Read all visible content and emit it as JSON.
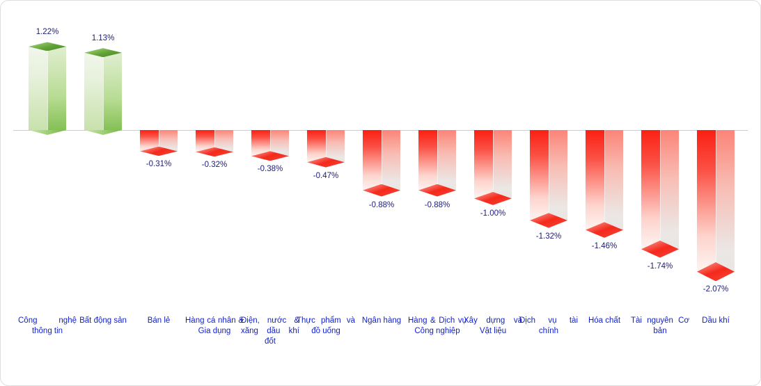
{
  "chart_data": {
    "type": "bar",
    "style": "3d-prism-vertical",
    "title": "",
    "xlabel": "",
    "ylabel": "",
    "unit": "%",
    "categories": [
      "Công nghệ thông tin",
      "Bất động sản",
      "Bán lẻ",
      "Hàng cá nhân & Gia dụng",
      "Điện, nước & xăng dầu khí đốt",
      "Thực phẩm và đồ uống",
      "Ngân hàng",
      "Hàng & Dịch vụ Công nghiệp",
      "Xây dựng và Vật liệu",
      "Dịch vụ tài chính",
      "Hóa chất",
      "Tài nguyên Cơ bản",
      "Dầu khí"
    ],
    "values": [
      1.22,
      1.13,
      -0.31,
      -0.32,
      -0.38,
      -0.47,
      -0.88,
      -0.88,
      -1.0,
      -1.32,
      -1.46,
      -1.74,
      -2.07
    ],
    "value_labels": [
      "1.22%",
      "1.13%",
      "-0.31%",
      "-0.32%",
      "-0.38%",
      "-0.47%",
      "-0.88%",
      "-0.88%",
      "-1.00%",
      "-1.32%",
      "-1.46%",
      "-1.74%",
      "-2.07%"
    ],
    "positive_color": "#7CBB4F",
    "negative_color": "#F4291B",
    "value_label_color": "#1C1C74",
    "category_label_color": "#0F1FC9",
    "baseline_color": "#CCCCCC",
    "background_color": "#FFFFFF",
    "ylim": [
      -2.3,
      1.5
    ],
    "grid": false,
    "legend": false
  }
}
